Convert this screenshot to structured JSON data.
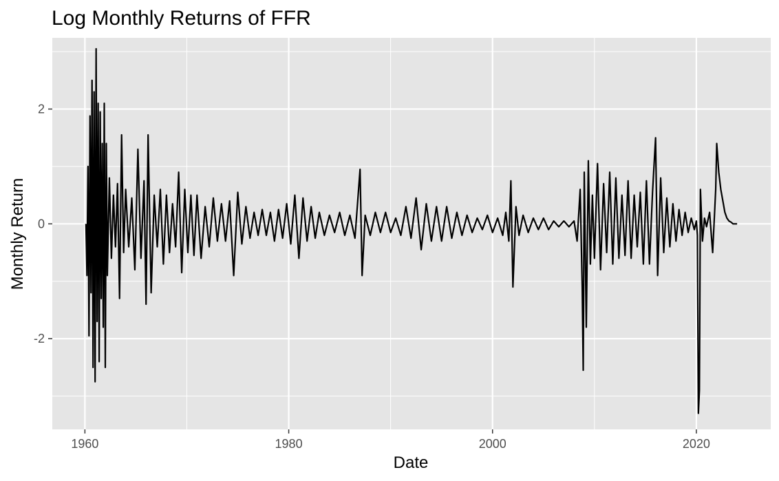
{
  "chart_data": {
    "type": "line",
    "title": "Log Monthly Returns of FFR",
    "xlabel": "Date",
    "ylabel": "Monthly Return",
    "xlim": [
      1956.8,
      2027.3
    ],
    "ylim": [
      -3.58,
      3.24
    ],
    "x_ticks": [
      1960,
      1980,
      2000,
      2020
    ],
    "x_tick_labels": [
      "1960",
      "1980",
      "2000",
      "2020"
    ],
    "y_ticks": [
      -2,
      0,
      2
    ],
    "y_tick_labels": [
      "-2",
      "0",
      "2"
    ],
    "grid": true,
    "panel_background": "#e5e5e5",
    "grid_color": "#ffffff",
    "line_color": "#000000",
    "series": [
      {
        "x": [
          1960.1,
          1960.2,
          1960.3,
          1960.4,
          1960.5,
          1960.6,
          1960.7,
          1960.8,
          1960.9,
          1961.0,
          1961.1,
          1961.2,
          1961.3,
          1961.4,
          1961.5,
          1961.6,
          1961.7,
          1961.8,
          1961.9,
          1962.0,
          1962.1,
          1962.2,
          1962.4,
          1962.6,
          1962.8,
          1963.0,
          1963.2,
          1963.4,
          1963.6,
          1963.8,
          1964.0,
          1964.3,
          1964.6,
          1964.9,
          1965.2,
          1965.5,
          1965.8,
          1966.0,
          1966.2,
          1966.5,
          1966.8,
          1967.1,
          1967.4,
          1967.7,
          1968.0,
          1968.3,
          1968.6,
          1968.9,
          1969.2,
          1969.5,
          1969.8,
          1970.1,
          1970.4,
          1970.7,
          1971.0,
          1971.4,
          1971.8,
          1972.2,
          1972.6,
          1973.0,
          1973.4,
          1973.8,
          1974.2,
          1974.6,
          1975.0,
          1975.4,
          1975.8,
          1976.2,
          1976.6,
          1977.0,
          1977.4,
          1977.8,
          1978.2,
          1978.6,
          1979.0,
          1979.4,
          1979.8,
          1980.2,
          1980.6,
          1981.0,
          1981.4,
          1981.8,
          1982.2,
          1982.6,
          1983.0,
          1983.5,
          1984.0,
          1984.5,
          1985.0,
          1985.5,
          1986.0,
          1986.5,
          1987.0,
          1987.2,
          1987.5,
          1988.0,
          1988.5,
          1989.0,
          1989.5,
          1990.0,
          1990.5,
          1991.0,
          1991.5,
          1992.0,
          1992.5,
          1993.0,
          1993.5,
          1994.0,
          1994.5,
          1995.0,
          1995.5,
          1996.0,
          1996.5,
          1997.0,
          1997.5,
          1998.0,
          1998.5,
          1999.0,
          1999.5,
          2000.0,
          2000.5,
          2001.0,
          2001.3,
          2001.6,
          2001.8,
          2002.0,
          2002.3,
          2002.6,
          2003.0,
          2003.5,
          2004.0,
          2004.5,
          2005.0,
          2005.5,
          2006.0,
          2006.5,
          2007.0,
          2007.5,
          2008.0,
          2008.3,
          2008.6,
          2008.8,
          2008.9,
          2009.0,
          2009.2,
          2009.4,
          2009.6,
          2009.8,
          2010.0,
          2010.3,
          2010.6,
          2010.9,
          2011.2,
          2011.5,
          2011.8,
          2012.1,
          2012.4,
          2012.7,
          2013.0,
          2013.3,
          2013.6,
          2013.9,
          2014.2,
          2014.5,
          2014.8,
          2015.1,
          2015.4,
          2015.7,
          2016.0,
          2016.2,
          2016.5,
          2016.8,
          2017.1,
          2017.4,
          2017.7,
          2018.0,
          2018.3,
          2018.6,
          2018.9,
          2019.2,
          2019.5,
          2019.8,
          2020.0,
          2020.1,
          2020.2,
          2020.3,
          2020.4,
          2020.6,
          2020.8,
          2021.0,
          2021.3,
          2021.6,
          2021.9,
          2022.0,
          2022.2,
          2022.4,
          2022.6,
          2022.8,
          2023.0,
          2023.2,
          2023.4,
          2023.6,
          2023.8,
          2024.0
        ],
        "y": [
          0.0,
          -0.9,
          1.0,
          -1.95,
          1.88,
          -1.2,
          2.5,
          -2.5,
          2.3,
          -2.75,
          3.05,
          -1.7,
          2.1,
          -2.4,
          1.95,
          -1.3,
          1.4,
          -1.8,
          2.1,
          -2.5,
          1.4,
          -0.9,
          0.8,
          -0.6,
          0.5,
          -0.4,
          0.7,
          -1.3,
          1.55,
          -0.5,
          0.6,
          -0.4,
          0.45,
          -0.8,
          1.3,
          -0.6,
          0.75,
          -1.4,
          1.55,
          -1.2,
          0.5,
          -0.4,
          0.6,
          -0.7,
          0.5,
          -0.5,
          0.35,
          -0.4,
          0.9,
          -0.85,
          0.6,
          -0.5,
          0.5,
          -0.55,
          0.5,
          -0.6,
          0.3,
          -0.4,
          0.45,
          -0.3,
          0.35,
          -0.3,
          0.4,
          -0.9,
          0.55,
          -0.35,
          0.3,
          -0.25,
          0.2,
          -0.2,
          0.25,
          -0.2,
          0.2,
          -0.3,
          0.25,
          -0.25,
          0.35,
          -0.35,
          0.5,
          -0.6,
          0.45,
          -0.3,
          0.3,
          -0.25,
          0.2,
          -0.2,
          0.15,
          -0.15,
          0.2,
          -0.2,
          0.15,
          -0.25,
          0.95,
          -0.9,
          0.15,
          -0.2,
          0.2,
          -0.15,
          0.2,
          -0.15,
          0.1,
          -0.2,
          0.3,
          -0.25,
          0.45,
          -0.45,
          0.35,
          -0.3,
          0.3,
          -0.3,
          0.3,
          -0.25,
          0.2,
          -0.2,
          0.15,
          -0.15,
          0.1,
          -0.1,
          0.15,
          -0.15,
          0.1,
          -0.2,
          0.2,
          -0.3,
          0.75,
          -1.1,
          0.3,
          -0.2,
          0.15,
          -0.15,
          0.1,
          -0.1,
          0.1,
          -0.1,
          0.05,
          -0.05,
          0.05,
          -0.05,
          0.05,
          -0.3,
          0.6,
          -1.1,
          -2.55,
          0.9,
          -1.8,
          1.1,
          -0.7,
          0.5,
          -0.6,
          1.05,
          -0.8,
          0.7,
          -0.5,
          0.9,
          -0.7,
          0.8,
          -0.6,
          0.5,
          -0.55,
          0.75,
          -0.6,
          0.5,
          -0.4,
          0.55,
          -0.7,
          0.75,
          -0.7,
          0.55,
          1.5,
          -0.9,
          0.8,
          -0.5,
          0.45,
          -0.4,
          0.35,
          -0.3,
          0.25,
          -0.2,
          0.2,
          -0.15,
          0.1,
          -0.1,
          0.05,
          -0.2,
          -3.3,
          -2.9,
          0.6,
          -0.3,
          0.1,
          -0.05,
          0.2,
          -0.5,
          0.6,
          1.4,
          0.9,
          0.6,
          0.4,
          0.2,
          0.1,
          0.05,
          0.03,
          0.0,
          0.0,
          0.0
        ]
      }
    ]
  }
}
